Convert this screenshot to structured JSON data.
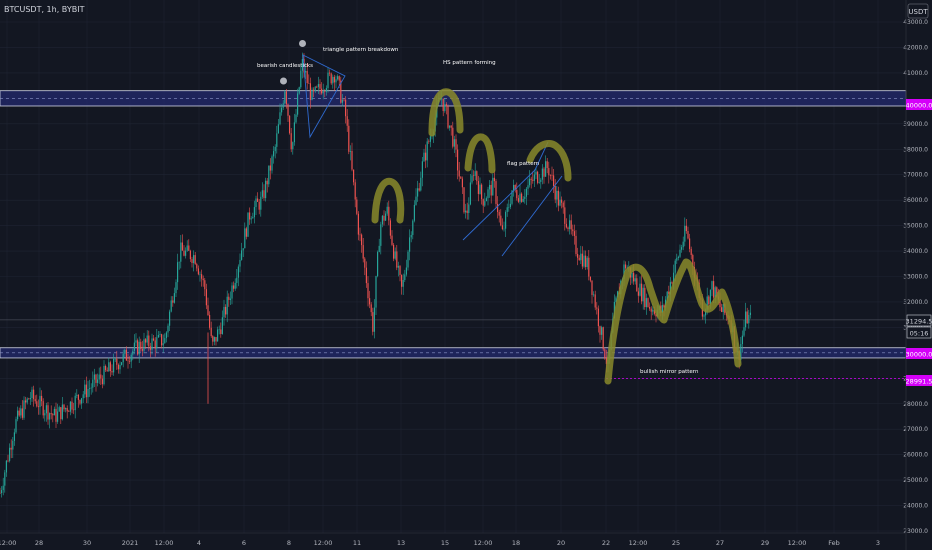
{
  "symbol": "BTCUSDT, 1h, BYBIT",
  "currency": "USDT",
  "colors": {
    "background": "#131722",
    "grid": "#1f2433",
    "up": "#26a69a",
    "down": "#ef5350",
    "zone_fill": "#232a6e",
    "zone_border": "#cfd3e6",
    "trend": "#2f6ad0",
    "pattern": "#8a8a2a",
    "marker": "#b0b3bb",
    "label_magenta": "#d500f9",
    "axis_text": "#b2b5be"
  },
  "y_axis": {
    "min": 23000,
    "max": 44000,
    "ticks": [
      "23000.0",
      "24000.0",
      "25000.0",
      "26000.0",
      "27000.0",
      "28000.0",
      "29000.0",
      "30000.0",
      "31000.0",
      "32000.0",
      "33000.0",
      "34000.0",
      "35000.0",
      "36000.0",
      "37000.0",
      "38000.0",
      "39000.0",
      "40000.0",
      "41000.0",
      "42000.0",
      "43000.0"
    ]
  },
  "x_axis": {
    "labels": [
      "12:00",
      "28",
      "30",
      "2021",
      "12:00",
      "4",
      "6",
      "8",
      "12:00",
      "11",
      "13",
      "15",
      "12:00",
      "18",
      "20",
      "22",
      "12:00",
      "25",
      "27",
      "29",
      "12:00",
      "Feb",
      "3"
    ]
  },
  "price_labels": {
    "current": "31294.5",
    "countdown": "05:16",
    "resistance": "40000.0",
    "support": "30000.0",
    "dashed": "28991.5"
  },
  "annotations": {
    "bearish": "bearish candlesticks",
    "triangle": "triangle pattern breakdown",
    "hs": "HS pattern forming",
    "flag": "flag pattern",
    "mirror": "bullish mirror pattern"
  },
  "chart_data": {
    "type": "candlestick",
    "title": "BTCUSDT, 1h, BYBIT",
    "ylim": [
      23000,
      44000
    ],
    "close_path": [
      [
        0,
        24500
      ],
      [
        15,
        27200
      ],
      [
        30,
        28300
      ],
      [
        55,
        27500
      ],
      [
        80,
        28300
      ],
      [
        100,
        29000
      ],
      [
        120,
        29700
      ],
      [
        140,
        30300
      ],
      [
        165,
        30500
      ],
      [
        180,
        34000
      ],
      [
        195,
        33800
      ],
      [
        205,
        32500
      ],
      [
        212,
        30200
      ],
      [
        222,
        31200
      ],
      [
        235,
        33000
      ],
      [
        250,
        35500
      ],
      [
        262,
        36000
      ],
      [
        275,
        38000
      ],
      [
        285,
        40500
      ],
      [
        292,
        38000
      ],
      [
        302,
        41400
      ],
      [
        312,
        40000
      ],
      [
        322,
        40500
      ],
      [
        335,
        41000
      ],
      [
        345,
        39500
      ],
      [
        358,
        35000
      ],
      [
        366,
        33000
      ],
      [
        373,
        31000
      ],
      [
        380,
        35000
      ],
      [
        387,
        35600
      ],
      [
        395,
        33700
      ],
      [
        402,
        32400
      ],
      [
        412,
        35200
      ],
      [
        422,
        37300
      ],
      [
        432,
        38800
      ],
      [
        441,
        40100
      ],
      [
        452,
        38600
      ],
      [
        460,
        36800
      ],
      [
        466,
        35300
      ],
      [
        474,
        37300
      ],
      [
        482,
        36000
      ],
      [
        494,
        36600
      ],
      [
        502,
        34600
      ],
      [
        512,
        36400
      ],
      [
        522,
        36200
      ],
      [
        535,
        36900
      ],
      [
        548,
        37300
      ],
      [
        558,
        36000
      ],
      [
        566,
        35300
      ],
      [
        576,
        34100
      ],
      [
        588,
        33400
      ],
      [
        600,
        31000
      ],
      [
        608,
        29400
      ],
      [
        614,
        31600
      ],
      [
        625,
        33500
      ],
      [
        638,
        32600
      ],
      [
        650,
        31800
      ],
      [
        662,
        31600
      ],
      [
        675,
        33400
      ],
      [
        686,
        34800
      ],
      [
        694,
        33300
      ],
      [
        703,
        31600
      ],
      [
        712,
        32600
      ],
      [
        722,
        31600
      ],
      [
        730,
        31400
      ],
      [
        738,
        29800
      ],
      [
        746,
        31400
      ],
      [
        752,
        31290
      ]
    ],
    "resistance_zone": [
      39700,
      40300
    ],
    "support_zone": [
      29800,
      30200
    ],
    "dashed_level": 28991.5
  }
}
